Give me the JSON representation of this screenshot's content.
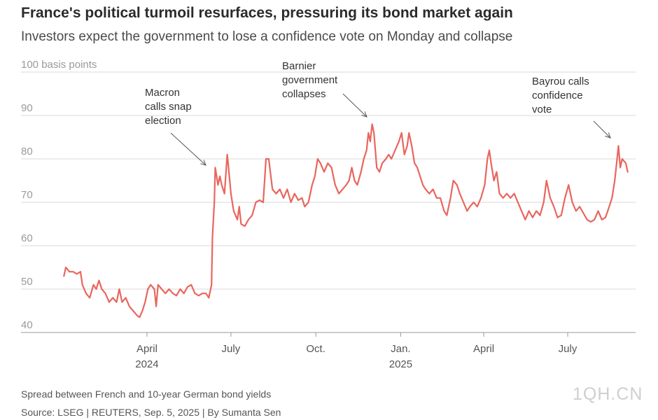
{
  "header": {
    "title": "France's political turmoil resurfaces, pressuring its bond market again",
    "subtitle": "Investors expect the government to lose a confidence vote on Monday and collapse"
  },
  "footer": {
    "note": "Spread between French and 10-year German bond yields",
    "source": "Source: LSEG | REUTERS, Sep. 5, 2025 | By Sumanta Sen"
  },
  "watermark": "1QH.CN",
  "colors": {
    "line": "#e8665e",
    "grid": "#d9d9d9",
    "axis": "#999999",
    "tick_text": "#9a9a9a",
    "label_text": "#555555"
  },
  "chart_data": {
    "type": "line",
    "title": "France's political turmoil resurfaces, pressuring its bond market again",
    "ylabel": "basis points",
    "ylim": [
      40,
      100
    ],
    "y_ticks": [
      {
        "value": 100,
        "label": "100 basis points"
      },
      {
        "value": 90,
        "label": "90"
      },
      {
        "value": 80,
        "label": "80"
      },
      {
        "value": 70,
        "label": "70"
      },
      {
        "value": 60,
        "label": "60"
      },
      {
        "value": 50,
        "label": "50"
      },
      {
        "value": 40,
        "label": "40"
      }
    ],
    "xlim": [
      "2024-01-01",
      "2025-09-05"
    ],
    "x_ticks": [
      {
        "date": "2024-04-01",
        "label": "April",
        "sublabel": "2024"
      },
      {
        "date": "2024-07-01",
        "label": "July",
        "sublabel": ""
      },
      {
        "date": "2024-10-01",
        "label": "Oct.",
        "sublabel": ""
      },
      {
        "date": "2025-01-01",
        "label": "Jan.",
        "sublabel": "2025"
      },
      {
        "date": "2025-04-01",
        "label": "April",
        "sublabel": ""
      },
      {
        "date": "2025-07-01",
        "label": "July",
        "sublabel": ""
      }
    ],
    "annotations": [
      {
        "lines": [
          "Macron",
          "calls snap",
          "election"
        ],
        "date": "2024-06-10",
        "value": 78
      },
      {
        "lines": [
          "Barnier",
          "government",
          "collapses"
        ],
        "date": "2024-12-04",
        "value": 88
      },
      {
        "lines": [
          "Bayrou calls",
          "confidence",
          "vote"
        ],
        "date": "2025-08-25",
        "value": 83
      }
    ],
    "series": [
      {
        "points": [
          [
            "2024-01-02",
            53
          ],
          [
            "2024-01-04",
            55
          ],
          [
            "2024-01-08",
            54
          ],
          [
            "2024-01-12",
            54
          ],
          [
            "2024-01-16",
            53.5
          ],
          [
            "2024-01-20",
            54
          ],
          [
            "2024-01-22",
            51
          ],
          [
            "2024-01-26",
            49
          ],
          [
            "2024-01-30",
            48
          ],
          [
            "2024-02-03",
            51
          ],
          [
            "2024-02-06",
            50
          ],
          [
            "2024-02-09",
            52
          ],
          [
            "2024-02-12",
            50
          ],
          [
            "2024-02-16",
            49
          ],
          [
            "2024-02-20",
            47
          ],
          [
            "2024-02-24",
            48
          ],
          [
            "2024-02-28",
            47
          ],
          [
            "2024-03-02",
            50
          ],
          [
            "2024-03-05",
            47
          ],
          [
            "2024-03-09",
            48
          ],
          [
            "2024-03-13",
            46
          ],
          [
            "2024-03-17",
            45
          ],
          [
            "2024-03-21",
            44
          ],
          [
            "2024-03-24",
            43.5
          ],
          [
            "2024-03-27",
            45
          ],
          [
            "2024-03-30",
            47
          ],
          [
            "2024-04-02",
            50
          ],
          [
            "2024-04-05",
            51
          ],
          [
            "2024-04-09",
            50
          ],
          [
            "2024-04-11",
            46
          ],
          [
            "2024-04-13",
            51
          ],
          [
            "2024-04-17",
            50
          ],
          [
            "2024-04-21",
            49
          ],
          [
            "2024-04-25",
            50
          ],
          [
            "2024-04-29",
            49
          ],
          [
            "2024-05-03",
            48.5
          ],
          [
            "2024-05-07",
            50
          ],
          [
            "2024-05-11",
            49
          ],
          [
            "2024-05-15",
            50.5
          ],
          [
            "2024-05-19",
            51
          ],
          [
            "2024-05-23",
            49
          ],
          [
            "2024-05-27",
            48.5
          ],
          [
            "2024-05-31",
            49
          ],
          [
            "2024-06-04",
            49
          ],
          [
            "2024-06-07",
            48
          ],
          [
            "2024-06-10",
            51
          ],
          [
            "2024-06-11",
            62
          ],
          [
            "2024-06-13",
            70
          ],
          [
            "2024-06-14",
            78
          ],
          [
            "2024-06-17",
            74
          ],
          [
            "2024-06-19",
            76
          ],
          [
            "2024-06-21",
            74
          ],
          [
            "2024-06-24",
            72
          ],
          [
            "2024-06-26",
            78
          ],
          [
            "2024-06-27",
            81
          ],
          [
            "2024-06-28",
            79
          ],
          [
            "2024-07-01",
            72
          ],
          [
            "2024-07-04",
            68
          ],
          [
            "2024-07-08",
            66
          ],
          [
            "2024-07-10",
            69
          ],
          [
            "2024-07-12",
            65
          ],
          [
            "2024-07-16",
            64.5
          ],
          [
            "2024-07-20",
            66
          ],
          [
            "2024-07-24",
            67
          ],
          [
            "2024-07-28",
            70
          ],
          [
            "2024-08-01",
            70.5
          ],
          [
            "2024-08-05",
            70
          ],
          [
            "2024-08-08",
            80
          ],
          [
            "2024-08-11",
            80
          ],
          [
            "2024-08-15",
            73
          ],
          [
            "2024-08-19",
            72
          ],
          [
            "2024-08-23",
            73
          ],
          [
            "2024-08-27",
            71
          ],
          [
            "2024-08-31",
            73
          ],
          [
            "2024-09-04",
            70
          ],
          [
            "2024-09-08",
            72
          ],
          [
            "2024-09-12",
            70.5
          ],
          [
            "2024-09-16",
            71
          ],
          [
            "2024-09-19",
            69
          ],
          [
            "2024-09-23",
            70
          ],
          [
            "2024-09-27",
            74
          ],
          [
            "2024-09-30",
            76
          ],
          [
            "2024-10-03",
            80
          ],
          [
            "2024-10-06",
            79
          ],
          [
            "2024-10-10",
            77
          ],
          [
            "2024-10-14",
            79
          ],
          [
            "2024-10-18",
            78
          ],
          [
            "2024-10-22",
            74
          ],
          [
            "2024-10-26",
            72
          ],
          [
            "2024-10-30",
            73
          ],
          [
            "2024-11-03",
            74
          ],
          [
            "2024-11-06",
            75
          ],
          [
            "2024-11-09",
            78
          ],
          [
            "2024-11-12",
            75
          ],
          [
            "2024-11-15",
            74
          ],
          [
            "2024-11-19",
            77
          ],
          [
            "2024-11-22",
            80
          ],
          [
            "2024-11-25",
            82
          ],
          [
            "2024-11-27",
            86
          ],
          [
            "2024-11-29",
            84
          ],
          [
            "2024-12-01",
            88
          ],
          [
            "2024-12-03",
            86
          ],
          [
            "2024-12-06",
            78
          ],
          [
            "2024-12-09",
            77
          ],
          [
            "2024-12-12",
            79
          ],
          [
            "2024-12-16",
            80
          ],
          [
            "2024-12-19",
            81
          ],
          [
            "2024-12-22",
            80
          ],
          [
            "2024-12-26",
            82
          ],
          [
            "2024-12-30",
            84
          ],
          [
            "2025-01-02",
            86
          ],
          [
            "2025-01-05",
            81
          ],
          [
            "2025-01-08",
            83
          ],
          [
            "2025-01-10",
            86
          ],
          [
            "2025-01-13",
            83
          ],
          [
            "2025-01-16",
            79
          ],
          [
            "2025-01-19",
            78
          ],
          [
            "2025-01-22",
            76
          ],
          [
            "2025-01-25",
            74
          ],
          [
            "2025-01-28",
            73
          ],
          [
            "2025-02-01",
            72
          ],
          [
            "2025-02-05",
            73
          ],
          [
            "2025-02-09",
            71
          ],
          [
            "2025-02-13",
            71
          ],
          [
            "2025-02-17",
            68
          ],
          [
            "2025-02-20",
            67
          ],
          [
            "2025-02-24",
            71
          ],
          [
            "2025-02-27",
            75
          ],
          [
            "2025-03-03",
            74
          ],
          [
            "2025-03-06",
            72
          ],
          [
            "2025-03-10",
            70
          ],
          [
            "2025-03-14",
            68
          ],
          [
            "2025-03-17",
            69
          ],
          [
            "2025-03-21",
            70
          ],
          [
            "2025-03-25",
            69
          ],
          [
            "2025-03-29",
            71
          ],
          [
            "2025-04-02",
            74
          ],
          [
            "2025-04-05",
            80
          ],
          [
            "2025-04-07",
            82
          ],
          [
            "2025-04-09",
            79
          ],
          [
            "2025-04-12",
            75
          ],
          [
            "2025-04-15",
            77
          ],
          [
            "2025-04-18",
            72
          ],
          [
            "2025-04-22",
            71
          ],
          [
            "2025-04-26",
            72
          ],
          [
            "2025-04-30",
            71
          ],
          [
            "2025-05-04",
            72
          ],
          [
            "2025-05-08",
            70
          ],
          [
            "2025-05-12",
            68
          ],
          [
            "2025-05-16",
            66
          ],
          [
            "2025-05-20",
            68
          ],
          [
            "2025-05-24",
            66.5
          ],
          [
            "2025-05-28",
            68
          ],
          [
            "2025-06-01",
            67
          ],
          [
            "2025-06-05",
            70
          ],
          [
            "2025-06-08",
            75
          ],
          [
            "2025-06-12",
            71
          ],
          [
            "2025-06-16",
            69
          ],
          [
            "2025-06-20",
            66.5
          ],
          [
            "2025-06-24",
            67
          ],
          [
            "2025-06-28",
            71
          ],
          [
            "2025-07-02",
            74
          ],
          [
            "2025-07-06",
            70
          ],
          [
            "2025-07-10",
            68
          ],
          [
            "2025-07-14",
            69
          ],
          [
            "2025-07-18",
            67.5
          ],
          [
            "2025-07-22",
            66
          ],
          [
            "2025-07-26",
            65.5
          ],
          [
            "2025-07-30",
            66
          ],
          [
            "2025-08-03",
            68
          ],
          [
            "2025-08-07",
            66
          ],
          [
            "2025-08-11",
            66.5
          ],
          [
            "2025-08-15",
            69
          ],
          [
            "2025-08-18",
            71
          ],
          [
            "2025-08-21",
            75
          ],
          [
            "2025-08-23",
            79
          ],
          [
            "2025-08-25",
            83
          ],
          [
            "2025-08-27",
            78
          ],
          [
            "2025-08-29",
            80
          ],
          [
            "2025-09-02",
            79
          ],
          [
            "2025-09-04",
            77
          ]
        ]
      }
    ]
  }
}
